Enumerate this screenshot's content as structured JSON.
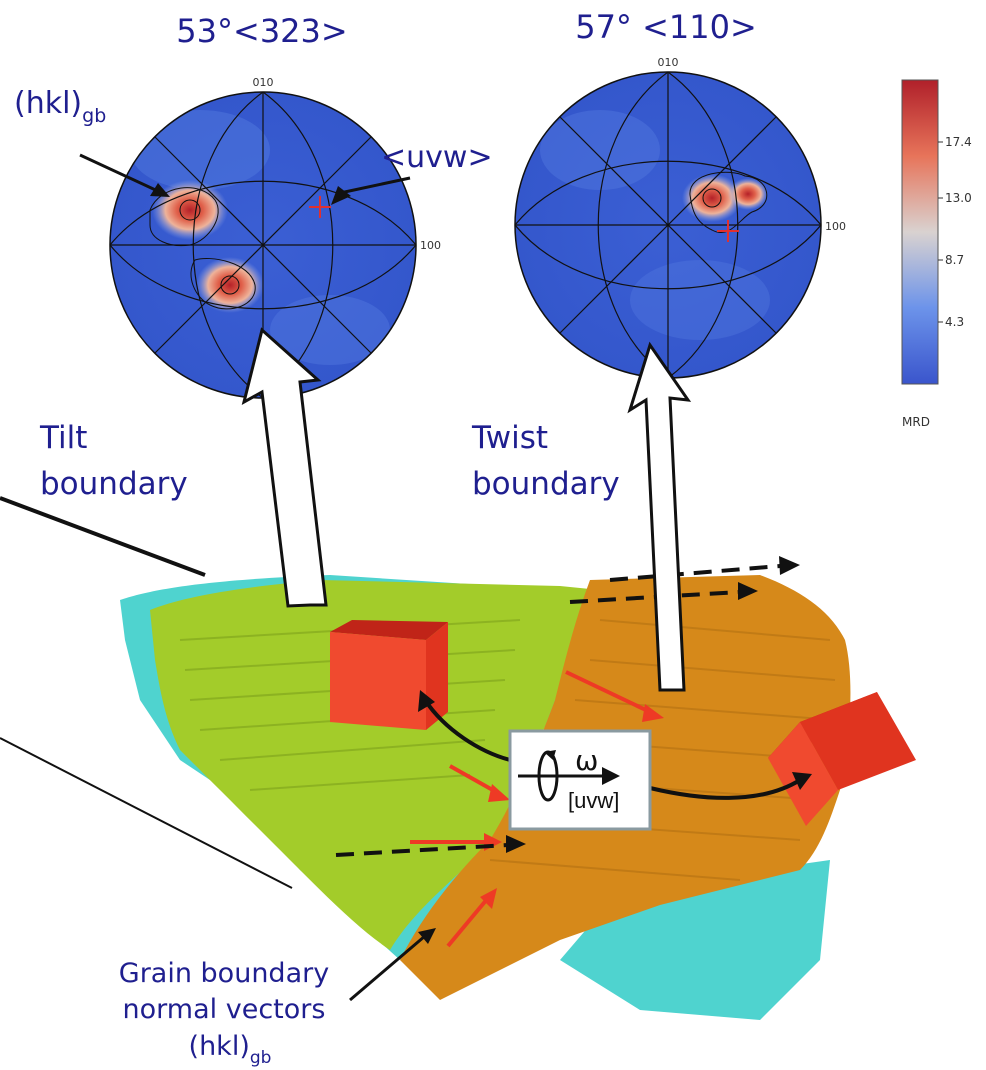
{
  "titles": {
    "left": "53°<323>",
    "right": "57° <110>"
  },
  "labels": {
    "hkl_main": "(hkl)",
    "hkl_sub": "gb",
    "uvw": "<uvw>",
    "tilt_line1": "Tilt",
    "tilt_line2": "boundary",
    "twist_line1": "Twist",
    "twist_line2": "boundary",
    "gb_line1": "Grain boundary",
    "gb_line2": "normal vectors",
    "gb_hkl_main": "(hkl)",
    "gb_hkl_sub": "gb",
    "omega": "ω",
    "uvw_bracket": "[uvw]"
  },
  "pole_figures": {
    "left": {
      "top_label": "010",
      "right_label": "100"
    },
    "right": {
      "top_label": "010",
      "right_label": "100"
    }
  },
  "colorbar": {
    "ticks": [
      "17.4",
      "13.0",
      "8.7",
      "4.3"
    ],
    "unit": "MRD",
    "colors": [
      "#b0202a",
      "#e7745a",
      "#d9d2d0",
      "#6c93ea",
      "#3a55cc"
    ]
  },
  "grains": {
    "green": "#a3cc2a",
    "orange": "#d6891a",
    "cyan": "#4fd3cf",
    "cube": "#f0402a"
  }
}
